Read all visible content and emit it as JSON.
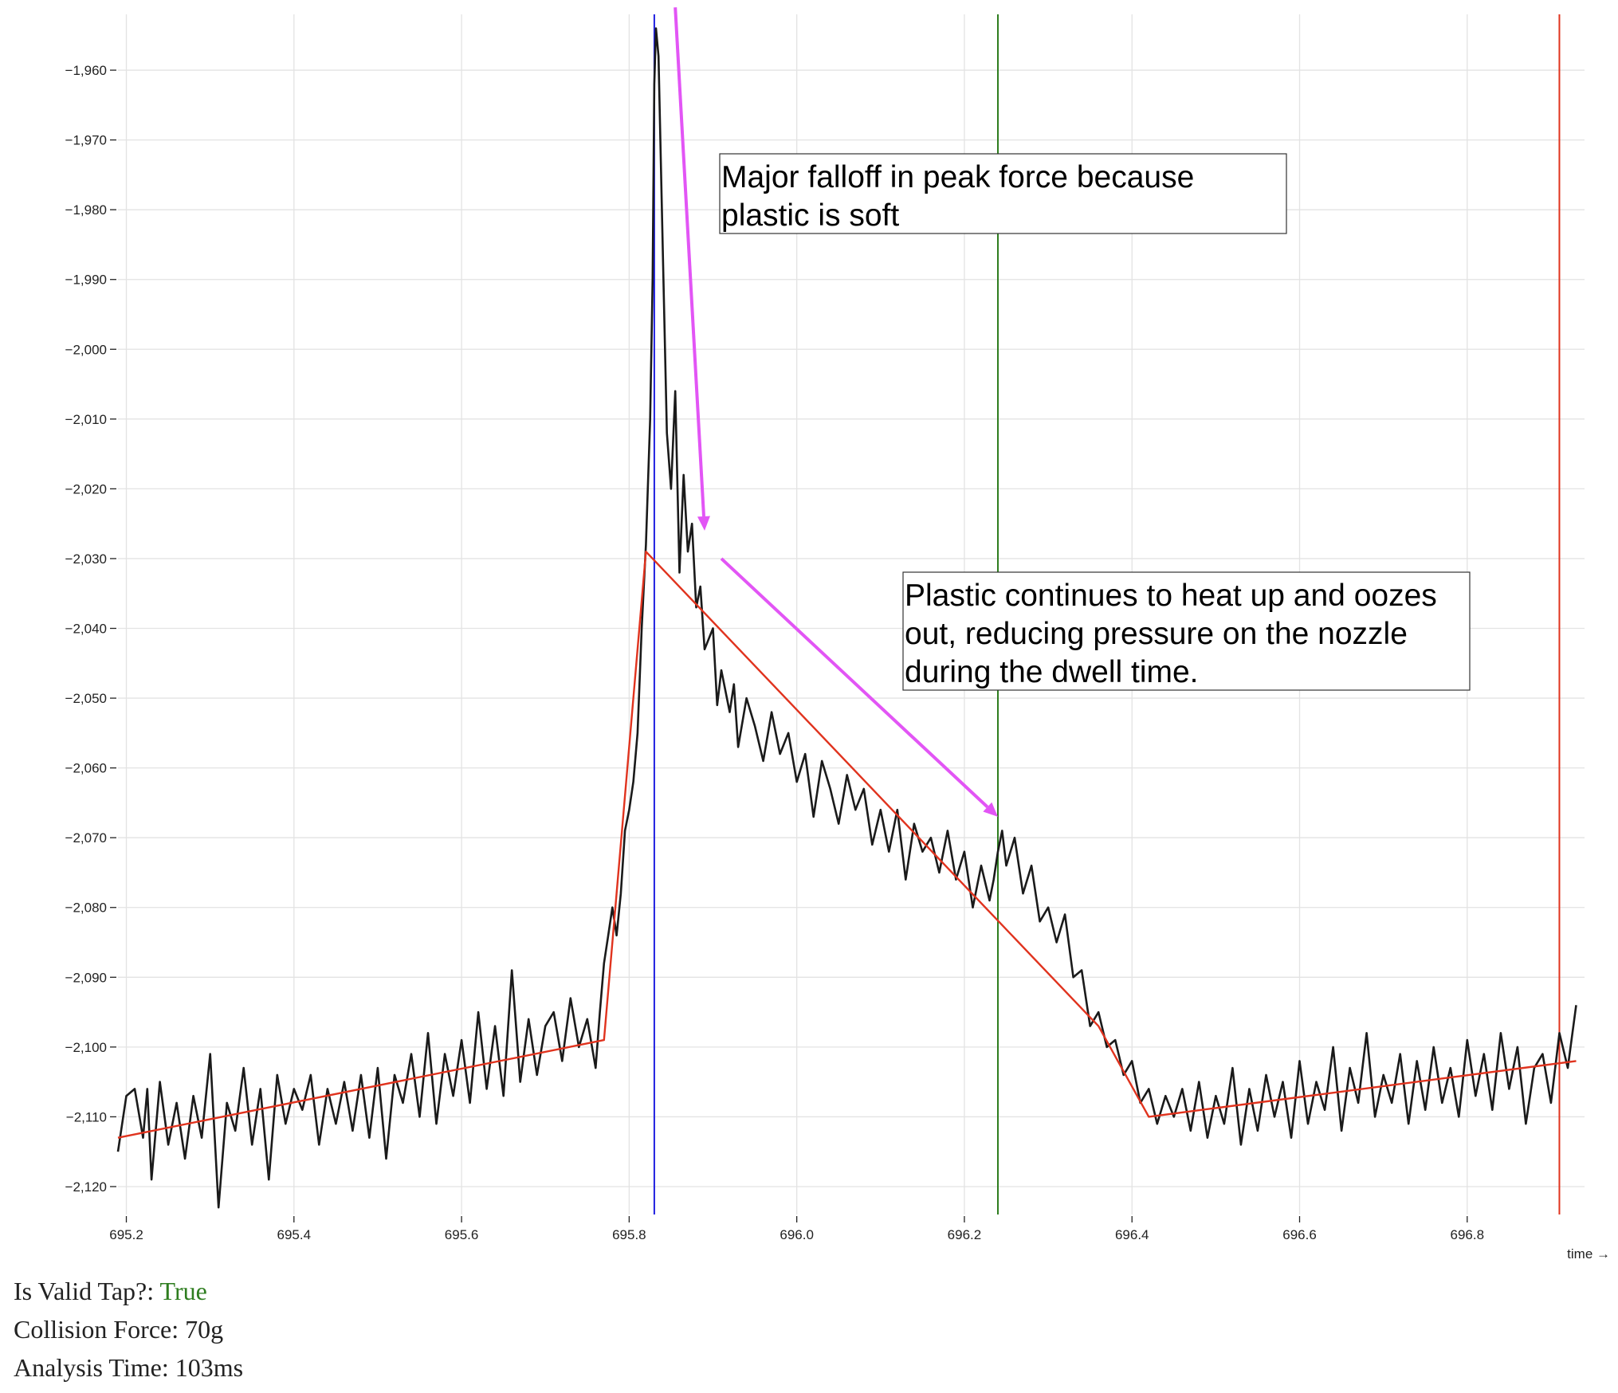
{
  "chart_data": {
    "type": "line",
    "xlabel": "time →",
    "ylabel": "",
    "xlim": [
      695.19,
      696.94
    ],
    "ylim": [
      -2124,
      -1952
    ],
    "x_ticks": [
      {
        "value": 695.2,
        "label": "695.2"
      },
      {
        "value": 695.4,
        "label": "695.4"
      },
      {
        "value": 695.6,
        "label": "695.6"
      },
      {
        "value": 695.8,
        "label": "695.8"
      },
      {
        "value": 696.0,
        "label": "696.0"
      },
      {
        "value": 696.2,
        "label": "696.2"
      },
      {
        "value": 696.4,
        "label": "696.4"
      },
      {
        "value": 696.6,
        "label": "696.6"
      },
      {
        "value": 696.8,
        "label": "696.8"
      }
    ],
    "y_ticks": [
      {
        "value": -1960,
        "label": "−1,960"
      },
      {
        "value": -1970,
        "label": "−1,970"
      },
      {
        "value": -1980,
        "label": "−1,980"
      },
      {
        "value": -1990,
        "label": "−1,990"
      },
      {
        "value": -2000,
        "label": "−2,000"
      },
      {
        "value": -2010,
        "label": "−2,010"
      },
      {
        "value": -2020,
        "label": "−2,020"
      },
      {
        "value": -2030,
        "label": "−2,030"
      },
      {
        "value": -2040,
        "label": "−2,040"
      },
      {
        "value": -2050,
        "label": "−2,050"
      },
      {
        "value": -2060,
        "label": "−2,060"
      },
      {
        "value": -2070,
        "label": "−2,070"
      },
      {
        "value": -2080,
        "label": "−2,080"
      },
      {
        "value": -2090,
        "label": "−2,090"
      },
      {
        "value": -2100,
        "label": "−2,100"
      },
      {
        "value": -2110,
        "label": "−2,110"
      },
      {
        "value": -2120,
        "label": "−2,120"
      }
    ],
    "grid": true,
    "series": [
      {
        "role": "raw force",
        "color": "#1a1a1a",
        "points": [
          [
            695.19,
            -2115
          ],
          [
            695.2,
            -2107
          ],
          [
            695.21,
            -2106
          ],
          [
            695.22,
            -2113
          ],
          [
            695.225,
            -2106
          ],
          [
            695.23,
            -2119
          ],
          [
            695.24,
            -2105
          ],
          [
            695.25,
            -2114
          ],
          [
            695.26,
            -2108
          ],
          [
            695.27,
            -2116
          ],
          [
            695.28,
            -2107
          ],
          [
            695.29,
            -2113
          ],
          [
            695.3,
            -2101
          ],
          [
            695.31,
            -2123
          ],
          [
            695.32,
            -2108
          ],
          [
            695.33,
            -2112
          ],
          [
            695.34,
            -2103
          ],
          [
            695.35,
            -2114
          ],
          [
            695.36,
            -2106
          ],
          [
            695.37,
            -2119
          ],
          [
            695.38,
            -2104
          ],
          [
            695.39,
            -2111
          ],
          [
            695.4,
            -2106
          ],
          [
            695.41,
            -2109
          ],
          [
            695.42,
            -2104
          ],
          [
            695.43,
            -2114
          ],
          [
            695.44,
            -2106
          ],
          [
            695.45,
            -2111
          ],
          [
            695.46,
            -2105
          ],
          [
            695.47,
            -2112
          ],
          [
            695.48,
            -2104
          ],
          [
            695.49,
            -2113
          ],
          [
            695.5,
            -2103
          ],
          [
            695.51,
            -2116
          ],
          [
            695.52,
            -2104
          ],
          [
            695.53,
            -2108
          ],
          [
            695.54,
            -2101
          ],
          [
            695.55,
            -2110
          ],
          [
            695.56,
            -2098
          ],
          [
            695.57,
            -2111
          ],
          [
            695.58,
            -2101
          ],
          [
            695.59,
            -2107
          ],
          [
            695.6,
            -2099
          ],
          [
            695.61,
            -2108
          ],
          [
            695.62,
            -2095
          ],
          [
            695.63,
            -2106
          ],
          [
            695.64,
            -2097
          ],
          [
            695.65,
            -2107
          ],
          [
            695.66,
            -2089
          ],
          [
            695.67,
            -2105
          ],
          [
            695.68,
            -2096
          ],
          [
            695.69,
            -2104
          ],
          [
            695.7,
            -2097
          ],
          [
            695.71,
            -2095
          ],
          [
            695.72,
            -2102
          ],
          [
            695.73,
            -2093
          ],
          [
            695.74,
            -2100
          ],
          [
            695.75,
            -2096
          ],
          [
            695.76,
            -2103
          ],
          [
            695.765,
            -2095
          ],
          [
            695.77,
            -2088
          ],
          [
            695.775,
            -2084
          ],
          [
            695.78,
            -2080
          ],
          [
            695.785,
            -2084
          ],
          [
            695.79,
            -2078
          ],
          [
            695.795,
            -2069
          ],
          [
            695.8,
            -2066
          ],
          [
            695.805,
            -2062
          ],
          [
            695.81,
            -2055
          ],
          [
            695.815,
            -2040
          ],
          [
            695.82,
            -2028
          ],
          [
            695.825,
            -2010
          ],
          [
            695.828,
            -1990
          ],
          [
            695.83,
            -1962
          ],
          [
            695.832,
            -1954
          ],
          [
            695.835,
            -1958
          ],
          [
            695.84,
            -1985
          ],
          [
            695.845,
            -2012
          ],
          [
            695.85,
            -2020
          ],
          [
            695.855,
            -2006
          ],
          [
            695.86,
            -2032
          ],
          [
            695.865,
            -2018
          ],
          [
            695.87,
            -2029
          ],
          [
            695.875,
            -2025
          ],
          [
            695.88,
            -2037
          ],
          [
            695.885,
            -2034
          ],
          [
            695.89,
            -2043
          ],
          [
            695.9,
            -2040
          ],
          [
            695.905,
            -2051
          ],
          [
            695.91,
            -2046
          ],
          [
            695.92,
            -2052
          ],
          [
            695.925,
            -2048
          ],
          [
            695.93,
            -2057
          ],
          [
            695.94,
            -2050
          ],
          [
            695.95,
            -2054
          ],
          [
            695.96,
            -2059
          ],
          [
            695.97,
            -2052
          ],
          [
            695.98,
            -2058
          ],
          [
            695.99,
            -2055
          ],
          [
            696.0,
            -2062
          ],
          [
            696.01,
            -2058
          ],
          [
            696.02,
            -2067
          ],
          [
            696.03,
            -2059
          ],
          [
            696.04,
            -2063
          ],
          [
            696.05,
            -2068
          ],
          [
            696.06,
            -2061
          ],
          [
            696.07,
            -2066
          ],
          [
            696.08,
            -2063
          ],
          [
            696.09,
            -2071
          ],
          [
            696.1,
            -2066
          ],
          [
            696.11,
            -2072
          ],
          [
            696.12,
            -2066
          ],
          [
            696.13,
            -2076
          ],
          [
            696.14,
            -2068
          ],
          [
            696.15,
            -2072
          ],
          [
            696.16,
            -2070
          ],
          [
            696.17,
            -2075
          ],
          [
            696.18,
            -2069
          ],
          [
            696.19,
            -2076
          ],
          [
            696.2,
            -2072
          ],
          [
            696.21,
            -2080
          ],
          [
            696.22,
            -2074
          ],
          [
            696.23,
            -2079
          ],
          [
            696.235,
            -2076
          ],
          [
            696.24,
            -2072
          ],
          [
            696.245,
            -2069
          ],
          [
            696.25,
            -2074
          ],
          [
            696.26,
            -2070
          ],
          [
            696.27,
            -2078
          ],
          [
            696.28,
            -2074
          ],
          [
            696.29,
            -2082
          ],
          [
            696.3,
            -2080
          ],
          [
            696.31,
            -2085
          ],
          [
            696.32,
            -2081
          ],
          [
            696.33,
            -2090
          ],
          [
            696.34,
            -2089
          ],
          [
            696.35,
            -2097
          ],
          [
            696.36,
            -2095
          ],
          [
            696.37,
            -2100
          ],
          [
            696.38,
            -2099
          ],
          [
            696.39,
            -2104
          ],
          [
            696.4,
            -2102
          ],
          [
            696.41,
            -2108
          ],
          [
            696.42,
            -2106
          ],
          [
            696.43,
            -2111
          ],
          [
            696.44,
            -2107
          ],
          [
            696.45,
            -2110
          ],
          [
            696.46,
            -2106
          ],
          [
            696.47,
            -2112
          ],
          [
            696.48,
            -2105
          ],
          [
            696.49,
            -2113
          ],
          [
            696.5,
            -2107
          ],
          [
            696.51,
            -2111
          ],
          [
            696.52,
            -2103
          ],
          [
            696.53,
            -2114
          ],
          [
            696.54,
            -2106
          ],
          [
            696.55,
            -2112
          ],
          [
            696.56,
            -2104
          ],
          [
            696.57,
            -2110
          ],
          [
            696.58,
            -2105
          ],
          [
            696.59,
            -2113
          ],
          [
            696.6,
            -2102
          ],
          [
            696.61,
            -2111
          ],
          [
            696.62,
            -2105
          ],
          [
            696.63,
            -2109
          ],
          [
            696.64,
            -2100
          ],
          [
            696.65,
            -2112
          ],
          [
            696.66,
            -2103
          ],
          [
            696.67,
            -2108
          ],
          [
            696.68,
            -2098
          ],
          [
            696.69,
            -2110
          ],
          [
            696.7,
            -2104
          ],
          [
            696.71,
            -2108
          ],
          [
            696.72,
            -2101
          ],
          [
            696.73,
            -2111
          ],
          [
            696.74,
            -2102
          ],
          [
            696.75,
            -2109
          ],
          [
            696.76,
            -2100
          ],
          [
            696.77,
            -2108
          ],
          [
            696.78,
            -2103
          ],
          [
            696.79,
            -2110
          ],
          [
            696.8,
            -2099
          ],
          [
            696.81,
            -2107
          ],
          [
            696.82,
            -2101
          ],
          [
            696.83,
            -2109
          ],
          [
            696.84,
            -2098
          ],
          [
            696.85,
            -2106
          ],
          [
            696.86,
            -2100
          ],
          [
            696.87,
            -2111
          ],
          [
            696.88,
            -2103
          ],
          [
            696.89,
            -2101
          ],
          [
            696.9,
            -2108
          ],
          [
            696.91,
            -2098
          ],
          [
            696.92,
            -2103
          ],
          [
            696.93,
            -2094
          ]
        ]
      },
      {
        "role": "piecewise fit",
        "color": "#e0331e",
        "points": [
          [
            695.19,
            -2113
          ],
          [
            695.77,
            -2099
          ],
          [
            695.82,
            -2029
          ],
          [
            696.36,
            -2097
          ],
          [
            696.42,
            -2110
          ],
          [
            696.93,
            -2102
          ]
        ]
      }
    ],
    "vlines": [
      {
        "x": 695.83,
        "color": "#1f1fe0"
      },
      {
        "x": 696.24,
        "color": "#2e7d1f"
      },
      {
        "x": 696.91,
        "color": "#e0331e"
      }
    ],
    "arrows": [
      {
        "color": "#e255f5",
        "from": [
          695.855,
          -1951
        ],
        "to": [
          695.89,
          -2026
        ]
      },
      {
        "color": "#e255f5",
        "from": [
          695.91,
          -2030
        ],
        "to": [
          696.24,
          -2067
        ]
      }
    ],
    "annotations": [
      {
        "lines": [
          "Major falloff in peak force because",
          "plastic is soft"
        ]
      },
      {
        "lines": [
          "Plastic continues to heat up and oozes",
          "out, reducing pressure on the nozzle",
          "during the dwell time."
        ]
      }
    ]
  },
  "stats": {
    "valid_tap_label": "Is Valid Tap?: ",
    "valid_tap_value": "True",
    "valid_tap_color": "#2e7d1f",
    "collision_force": "Collision Force: 70g",
    "analysis_time": "Analysis Time: 103ms"
  }
}
